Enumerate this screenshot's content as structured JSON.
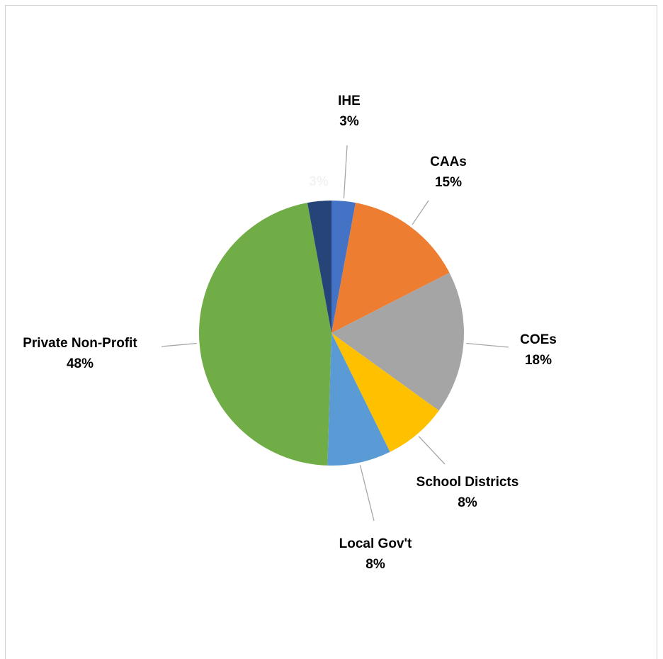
{
  "chart_data": {
    "type": "pie",
    "categories": [
      "IHE",
      "CAAs",
      "COEs",
      "School Districts",
      "Local Gov't",
      "Private Non-Profit",
      null
    ],
    "values": [
      3,
      15,
      18,
      8,
      8,
      48,
      3
    ],
    "value_labels": [
      "3%",
      "15%",
      "18%",
      "8%",
      "8%",
      "48%",
      "3%"
    ],
    "colors": [
      "#4472c4",
      "#ed7d31",
      "#a5a5a5",
      "#ffc000",
      "#5b9bd5",
      "#70ad47",
      "#264478"
    ]
  }
}
